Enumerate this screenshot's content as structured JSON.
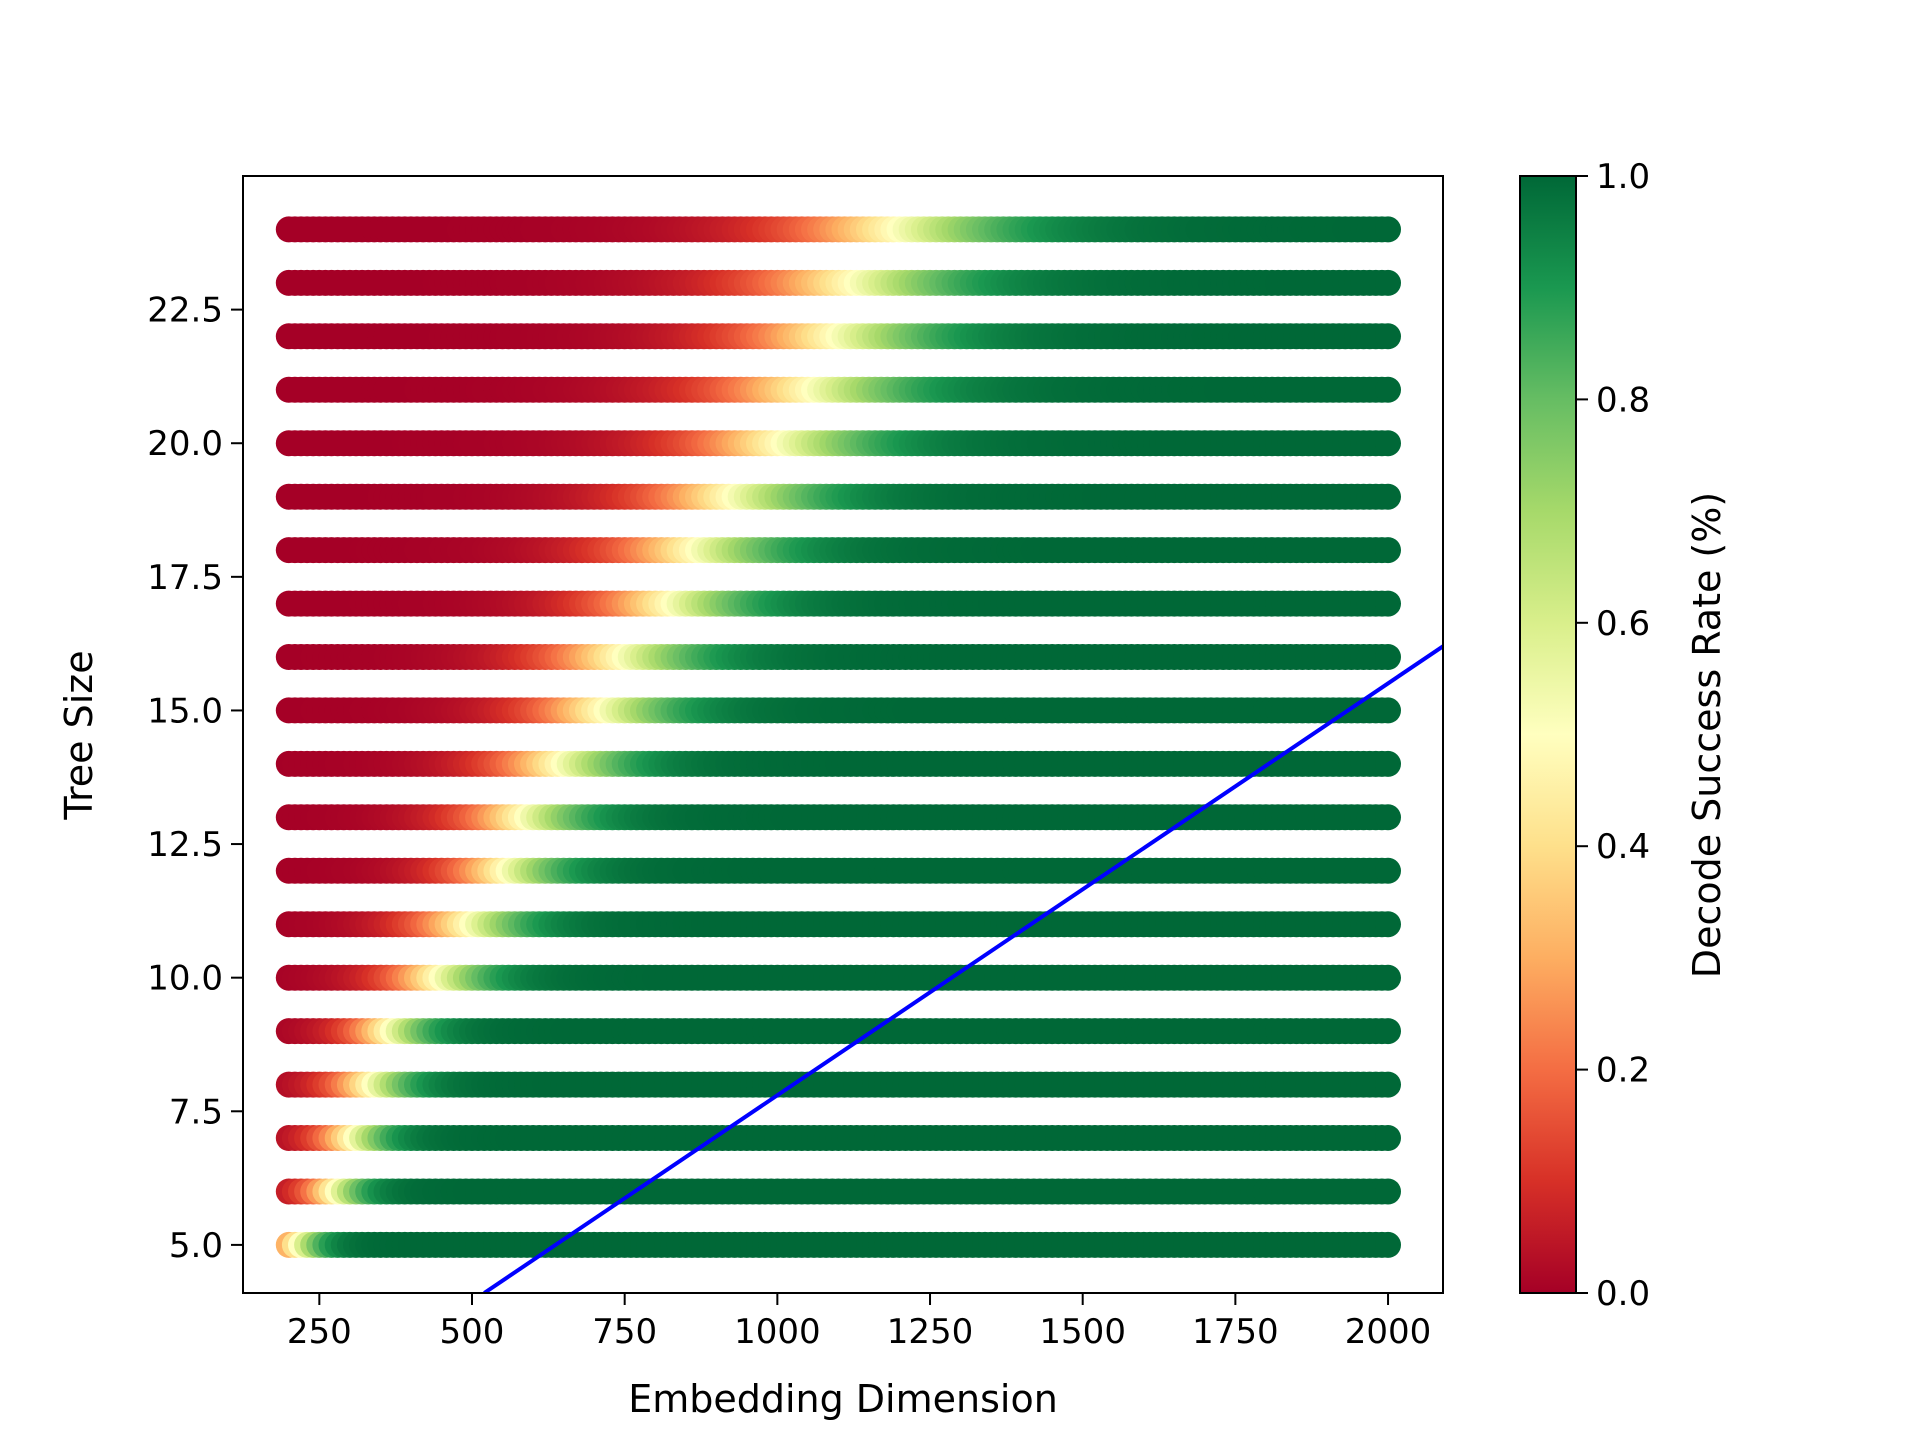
{
  "chart_data": {
    "type": "scatter",
    "title": "",
    "xlabel": "Embedding Dimension",
    "ylabel": "Tree Size",
    "xlim": [
      125,
      2090
    ],
    "ylim": [
      4.1,
      25.0
    ],
    "xticks": [
      250,
      500,
      750,
      1000,
      1250,
      1500,
      1750,
      2000
    ],
    "xtick_labels": [
      "250",
      "500",
      "750",
      "1000",
      "1250",
      "1500",
      "1750",
      "2000"
    ],
    "yticks": [
      5.0,
      7.5,
      10.0,
      12.5,
      15.0,
      17.5,
      20.0,
      22.5
    ],
    "ytick_labels": [
      "5.0",
      "7.5",
      "10.0",
      "12.5",
      "15.0",
      "17.5",
      "20.0",
      "22.5"
    ],
    "grid": false,
    "colormap": "RdYlGn",
    "colorbar": {
      "label": "Decode Success Rate (%)",
      "range": [
        0.0,
        1.0
      ],
      "ticks": [
        0.0,
        0.2,
        0.4,
        0.6,
        0.8,
        1.0
      ],
      "tick_labels": [
        "0.0",
        "0.2",
        "0.4",
        "0.6",
        "0.8",
        "1.0"
      ],
      "stops": [
        "#a50026",
        "#d73027",
        "#f46d43",
        "#fdae61",
        "#fee08b",
        "#ffffbf",
        "#d9ef8b",
        "#a6d96a",
        "#66bd63",
        "#1a9850",
        "#006837"
      ]
    },
    "scatter_x": {
      "start": 200,
      "end": 2000,
      "step": 10
    },
    "rows": [
      {
        "tree_size": 5,
        "transition_mid": 220,
        "transition_width": 25
      },
      {
        "tree_size": 6,
        "transition_mid": 280,
        "transition_width": 30
      },
      {
        "tree_size": 7,
        "transition_mid": 310,
        "transition_width": 35
      },
      {
        "tree_size": 8,
        "transition_mid": 340,
        "transition_width": 40
      },
      {
        "tree_size": 9,
        "transition_mid": 370,
        "transition_width": 40
      },
      {
        "tree_size": 10,
        "transition_mid": 450,
        "transition_width": 50
      },
      {
        "tree_size": 11,
        "transition_mid": 500,
        "transition_width": 55
      },
      {
        "tree_size": 12,
        "transition_mid": 560,
        "transition_width": 55
      },
      {
        "tree_size": 13,
        "transition_mid": 590,
        "transition_width": 60
      },
      {
        "tree_size": 14,
        "transition_mid": 650,
        "transition_width": 65
      },
      {
        "tree_size": 15,
        "transition_mid": 720,
        "transition_width": 70
      },
      {
        "tree_size": 16,
        "transition_mid": 750,
        "transition_width": 75
      },
      {
        "tree_size": 17,
        "transition_mid": 830,
        "transition_width": 75
      },
      {
        "tree_size": 18,
        "transition_mid": 870,
        "transition_width": 80
      },
      {
        "tree_size": 19,
        "transition_mid": 930,
        "transition_width": 85
      },
      {
        "tree_size": 20,
        "transition_mid": 1010,
        "transition_width": 90
      },
      {
        "tree_size": 21,
        "transition_mid": 1060,
        "transition_width": 95
      },
      {
        "tree_size": 22,
        "transition_mid": 1100,
        "transition_width": 95
      },
      {
        "tree_size": 23,
        "transition_mid": 1130,
        "transition_width": 100
      },
      {
        "tree_size": 24,
        "transition_mid": 1200,
        "transition_width": 105
      }
    ],
    "line": {
      "color": "#0000ff",
      "points": [
        {
          "x": 520,
          "y": 4.1
        },
        {
          "x": 2090,
          "y": 16.2
        }
      ]
    }
  }
}
